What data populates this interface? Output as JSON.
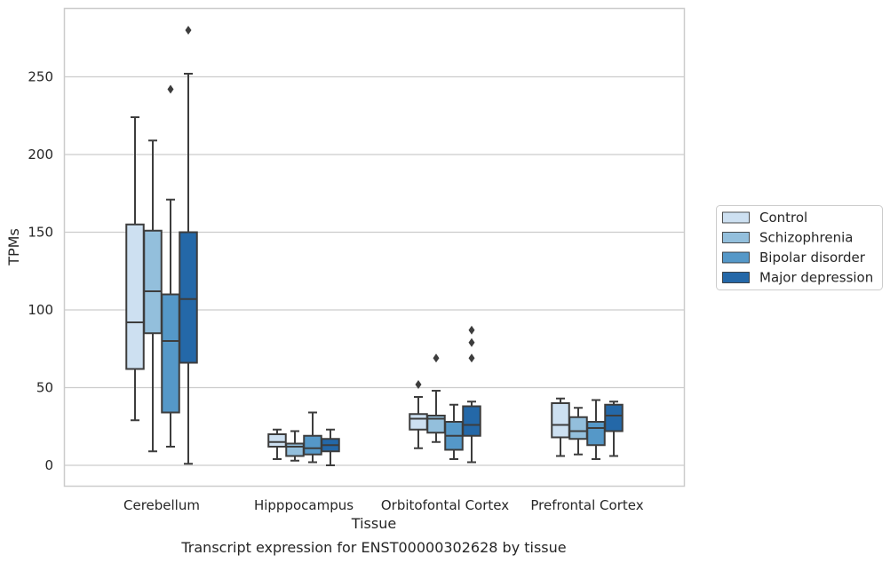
{
  "chart_data": {
    "type": "box",
    "title": "",
    "caption": "Transcript expression for ENST00000302628 by tissue",
    "xlabel": "Tissue",
    "ylabel": "TPMs",
    "ylim": [
      -13,
      296
    ],
    "yticks": [
      0,
      50,
      100,
      150,
      200,
      250
    ],
    "grid": "horizontal",
    "legend_position": "right",
    "categories": [
      "Cerebellum",
      "Hipppocampus",
      "Orbitofontal Cortex",
      "Prefrontal Cortex"
    ],
    "series": [
      {
        "name": "Control",
        "color": "#cde0f1",
        "boxes": [
          {
            "whislo": 29,
            "q1": 62,
            "med": 92,
            "q3": 155,
            "whishi": 224,
            "fliers": []
          },
          {
            "whislo": 4,
            "q1": 12,
            "med": 15,
            "q3": 20,
            "whishi": 23,
            "fliers": []
          },
          {
            "whislo": 11,
            "q1": 23,
            "med": 30,
            "q3": 33,
            "whishi": 44,
            "fliers": [
              52
            ]
          },
          {
            "whislo": 6,
            "q1": 18,
            "med": 26,
            "q3": 40,
            "whishi": 43,
            "fliers": []
          }
        ]
      },
      {
        "name": "Schizophrenia",
        "color": "#93bfdc",
        "boxes": [
          {
            "whislo": 9,
            "q1": 85,
            "med": 112,
            "q3": 151,
            "whishi": 209,
            "fliers": []
          },
          {
            "whislo": 3,
            "q1": 6,
            "med": 12,
            "q3": 14,
            "whishi": 22,
            "fliers": []
          },
          {
            "whislo": 15,
            "q1": 21,
            "med": 30,
            "q3": 32,
            "whishi": 48,
            "fliers": [
              69
            ]
          },
          {
            "whislo": 7,
            "q1": 17,
            "med": 22,
            "q3": 31,
            "whishi": 37,
            "fliers": []
          }
        ]
      },
      {
        "name": "Bipolar disorder",
        "color": "#5598c8",
        "boxes": [
          {
            "whislo": 12,
            "q1": 34,
            "med": 80,
            "q3": 110,
            "whishi": 171,
            "fliers": [
              242
            ]
          },
          {
            "whislo": 2,
            "q1": 7,
            "med": 11,
            "q3": 19,
            "whishi": 34,
            "fliers": []
          },
          {
            "whislo": 4,
            "q1": 10,
            "med": 19,
            "q3": 28,
            "whishi": 39,
            "fliers": []
          },
          {
            "whislo": 4,
            "q1": 13,
            "med": 24,
            "q3": 28,
            "whishi": 42,
            "fliers": []
          }
        ]
      },
      {
        "name": "Major depression",
        "color": "#2468a8",
        "boxes": [
          {
            "whislo": 1,
            "q1": 66,
            "med": 107,
            "q3": 150,
            "whishi": 252,
            "fliers": [
              280
            ]
          },
          {
            "whislo": 0,
            "q1": 9,
            "med": 13,
            "q3": 17,
            "whishi": 23,
            "fliers": []
          },
          {
            "whislo": 2,
            "q1": 19,
            "med": 26,
            "q3": 38,
            "whishi": 41,
            "fliers": [
              69,
              79,
              87
            ]
          },
          {
            "whislo": 6,
            "q1": 22,
            "med": 32,
            "q3": 39,
            "whishi": 41,
            "fliers": []
          }
        ]
      }
    ]
  }
}
